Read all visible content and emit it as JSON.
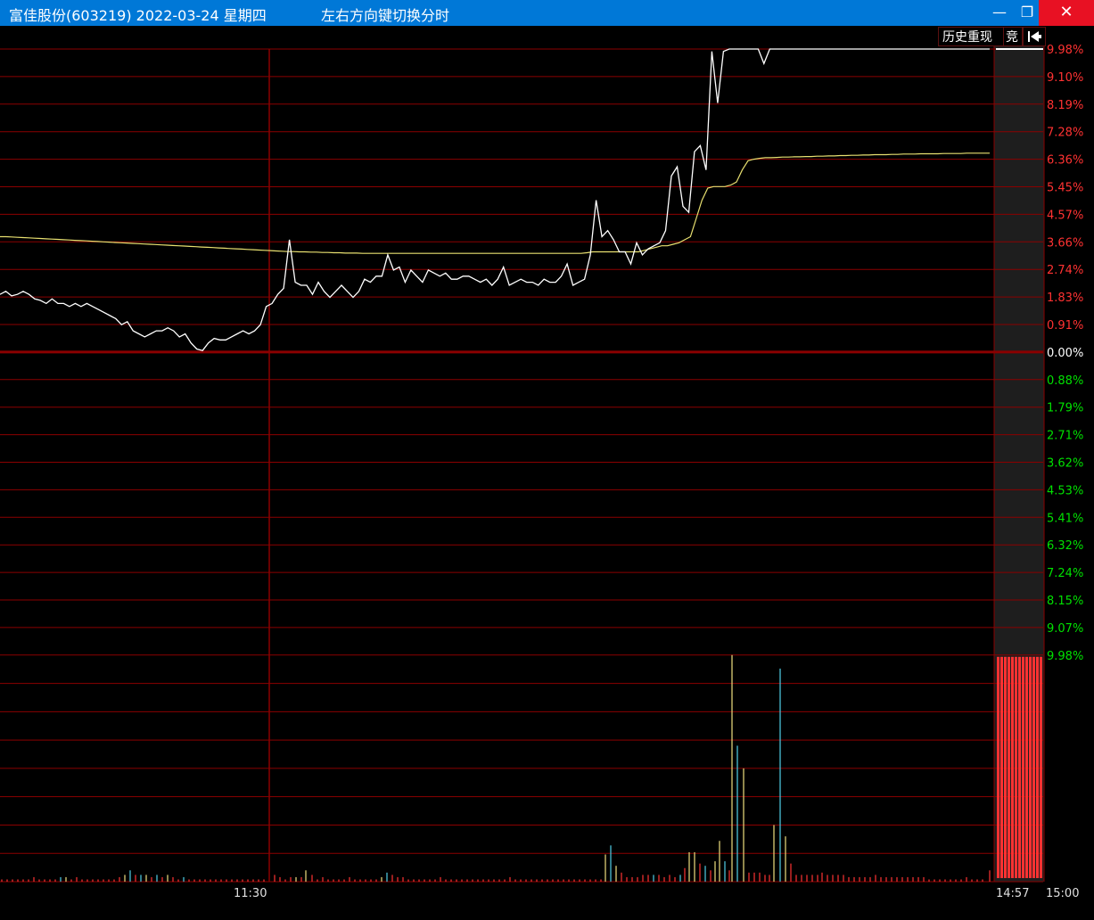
{
  "window": {
    "title": "富佳股份(603219) 2022-03-24 星期四",
    "hint": "左右方向键切换分时",
    "minimize_label": "—",
    "maximize_label": "❐",
    "close_label": "✕"
  },
  "toolbar": {
    "replay_label": "历史重现",
    "auction_label": "竞",
    "back_icon": "arrow-left-bar-icon"
  },
  "colors": {
    "up": "#ff3232",
    "down": "#00e000",
    "grid": "#8b0000",
    "price_line": "#ffffff",
    "avg_line": "#e8e070",
    "vol_cyan": "#50d0e8",
    "vol_yellow": "#f0e080"
  },
  "chart_data": {
    "type": "line",
    "price_axis_labels_up": [
      "9.98%",
      "9.10%",
      "8.19%",
      "7.28%",
      "6.36%",
      "5.45%",
      "4.57%",
      "3.66%",
      "2.74%",
      "1.83%",
      "0.91%"
    ],
    "zero_label": "0.00%",
    "price_axis_labels_down": [
      "0.88%",
      "1.79%",
      "2.71%",
      "3.62%",
      "4.53%",
      "5.41%",
      "6.32%",
      "7.24%",
      "8.15%",
      "9.07%"
    ],
    "volume_axis_label": "9.98%",
    "ylim_pct": [
      -9.98,
      9.98
    ],
    "x_ticks": [
      "11:30"
    ],
    "auction_x_ticks": [
      "14:57",
      "15:00"
    ],
    "price_pct": [
      1.9,
      2.0,
      1.85,
      1.9,
      2.0,
      1.9,
      1.75,
      1.7,
      1.6,
      1.75,
      1.6,
      1.6,
      1.5,
      1.6,
      1.5,
      1.6,
      1.5,
      1.4,
      1.3,
      1.2,
      1.1,
      0.9,
      1.0,
      0.7,
      0.6,
      0.5,
      0.6,
      0.7,
      0.7,
      0.8,
      0.7,
      0.5,
      0.6,
      0.3,
      0.1,
      0.05,
      0.3,
      0.45,
      0.4,
      0.4,
      0.5,
      0.6,
      0.7,
      0.6,
      0.7,
      0.9,
      1.5,
      1.6,
      1.9,
      2.1,
      3.7,
      2.3,
      2.2,
      2.2,
      1.9,
      2.3,
      2.0,
      1.8,
      2.0,
      2.2,
      2.0,
      1.8,
      2.0,
      2.4,
      2.3,
      2.5,
      2.5,
      3.2,
      2.7,
      2.8,
      2.3,
      2.7,
      2.5,
      2.3,
      2.7,
      2.6,
      2.5,
      2.6,
      2.4,
      2.4,
      2.5,
      2.5,
      2.4,
      2.3,
      2.4,
      2.2,
      2.4,
      2.8,
      2.2,
      2.3,
      2.4,
      2.3,
      2.3,
      2.2,
      2.4,
      2.3,
      2.3,
      2.5,
      2.9,
      2.2,
      2.3,
      2.4,
      3.2,
      5.0,
      3.8,
      4.0,
      3.7,
      3.3,
      3.3,
      2.9,
      3.6,
      3.2,
      3.4,
      3.5,
      3.6,
      4.0,
      5.8,
      6.1,
      4.8,
      4.6,
      6.6,
      6.8,
      6.0,
      9.9,
      8.2,
      9.9,
      9.98,
      9.98,
      9.98,
      9.98,
      9.98,
      9.98,
      9.5,
      9.98,
      9.98,
      9.98,
      9.98,
      9.98,
      9.98,
      9.98,
      9.98,
      9.98,
      9.98,
      9.98,
      9.98,
      9.98,
      9.98,
      9.98,
      9.98,
      9.98,
      9.98,
      9.98,
      9.98,
      9.98,
      9.98,
      9.98,
      9.98,
      9.98,
      9.98,
      9.98,
      9.98,
      9.98,
      9.98,
      9.98,
      9.98,
      9.98,
      9.98,
      9.98,
      9.98,
      9.98,
      9.98,
      9.98
    ],
    "avg_pct": [
      3.8,
      3.8,
      3.79,
      3.78,
      3.77,
      3.76,
      3.75,
      3.74,
      3.73,
      3.72,
      3.71,
      3.7,
      3.69,
      3.68,
      3.67,
      3.66,
      3.65,
      3.64,
      3.63,
      3.62,
      3.61,
      3.6,
      3.59,
      3.58,
      3.57,
      3.56,
      3.55,
      3.54,
      3.53,
      3.52,
      3.51,
      3.5,
      3.49,
      3.48,
      3.47,
      3.46,
      3.45,
      3.44,
      3.43,
      3.42,
      3.41,
      3.4,
      3.39,
      3.38,
      3.37,
      3.36,
      3.35,
      3.34,
      3.33,
      3.32,
      3.31,
      3.31,
      3.3,
      3.3,
      3.29,
      3.29,
      3.28,
      3.28,
      3.27,
      3.27,
      3.26,
      3.26,
      3.26,
      3.25,
      3.25,
      3.25,
      3.25,
      3.25,
      3.25,
      3.25,
      3.25,
      3.25,
      3.25,
      3.25,
      3.25,
      3.25,
      3.25,
      3.25,
      3.25,
      3.25,
      3.25,
      3.25,
      3.25,
      3.25,
      3.25,
      3.25,
      3.25,
      3.25,
      3.25,
      3.25,
      3.25,
      3.25,
      3.25,
      3.25,
      3.25,
      3.25,
      3.25,
      3.25,
      3.25,
      3.25,
      3.25,
      3.25,
      3.27,
      3.3,
      3.3,
      3.3,
      3.3,
      3.3,
      3.3,
      3.3,
      3.3,
      3.3,
      3.35,
      3.4,
      3.45,
      3.5,
      3.5,
      3.55,
      3.6,
      3.7,
      3.8,
      4.4,
      5.0,
      5.4,
      5.45,
      5.45,
      5.45,
      5.5,
      5.6,
      6.0,
      6.3,
      6.35,
      6.38,
      6.4,
      6.4,
      6.41,
      6.42,
      6.42,
      6.43,
      6.43,
      6.44,
      6.44,
      6.45,
      6.45,
      6.46,
      6.46,
      6.47,
      6.47,
      6.48,
      6.48,
      6.49,
      6.49,
      6.5,
      6.5,
      6.5,
      6.51,
      6.51,
      6.52,
      6.52,
      6.52,
      6.53,
      6.53,
      6.53,
      6.53,
      6.54,
      6.54,
      6.54,
      6.54,
      6.55,
      6.55,
      6.55,
      6.55,
      6.55
    ],
    "volume": [
      [
        2,
        1,
        "r"
      ],
      [
        8,
        1,
        "r"
      ],
      [
        14,
        1,
        "r"
      ],
      [
        20,
        1,
        "r"
      ],
      [
        26,
        1,
        "r"
      ],
      [
        32,
        1,
        "r"
      ],
      [
        38,
        2,
        "r"
      ],
      [
        44,
        1,
        "r"
      ],
      [
        50,
        1,
        "r"
      ],
      [
        56,
        1,
        "r"
      ],
      [
        62,
        1,
        "r"
      ],
      [
        68,
        2,
        "c"
      ],
      [
        74,
        2,
        "y"
      ],
      [
        80,
        1,
        "r"
      ],
      [
        86,
        2,
        "r"
      ],
      [
        92,
        1,
        "r"
      ],
      [
        98,
        1,
        "r"
      ],
      [
        104,
        1,
        "r"
      ],
      [
        110,
        1,
        "r"
      ],
      [
        116,
        1,
        "r"
      ],
      [
        122,
        1,
        "r"
      ],
      [
        128,
        1,
        "r"
      ],
      [
        134,
        2,
        "r"
      ],
      [
        140,
        3,
        "y"
      ],
      [
        146,
        5,
        "c"
      ],
      [
        152,
        3,
        "r"
      ],
      [
        158,
        3,
        "c"
      ],
      [
        164,
        3,
        "y"
      ],
      [
        170,
        2,
        "r"
      ],
      [
        176,
        3,
        "c"
      ],
      [
        182,
        2,
        "r"
      ],
      [
        188,
        3,
        "y"
      ],
      [
        194,
        2,
        "r"
      ],
      [
        200,
        1,
        "r"
      ],
      [
        206,
        2,
        "c"
      ],
      [
        212,
        1,
        "r"
      ],
      [
        218,
        1,
        "r"
      ],
      [
        224,
        1,
        "r"
      ],
      [
        230,
        1,
        "r"
      ],
      [
        236,
        1,
        "r"
      ],
      [
        242,
        1,
        "r"
      ],
      [
        248,
        1,
        "r"
      ],
      [
        254,
        1,
        "r"
      ],
      [
        260,
        1,
        "r"
      ],
      [
        266,
        1,
        "r"
      ],
      [
        272,
        1,
        "r"
      ],
      [
        278,
        1,
        "r"
      ],
      [
        284,
        1,
        "r"
      ],
      [
        290,
        1,
        "r"
      ],
      [
        296,
        1,
        "r"
      ],
      [
        308,
        3,
        "r"
      ],
      [
        314,
        2,
        "r"
      ],
      [
        320,
        1,
        "r"
      ],
      [
        326,
        2,
        "r"
      ],
      [
        332,
        2,
        "y"
      ],
      [
        338,
        2,
        "r"
      ],
      [
        343,
        5,
        "y"
      ],
      [
        350,
        3,
        "r"
      ],
      [
        356,
        1,
        "r"
      ],
      [
        362,
        2,
        "r"
      ],
      [
        368,
        1,
        "r"
      ],
      [
        374,
        1,
        "r"
      ],
      [
        380,
        1,
        "r"
      ],
      [
        386,
        1,
        "r"
      ],
      [
        392,
        2,
        "r"
      ],
      [
        398,
        1,
        "r"
      ],
      [
        404,
        1,
        "r"
      ],
      [
        410,
        1,
        "r"
      ],
      [
        416,
        1,
        "r"
      ],
      [
        422,
        1,
        "r"
      ],
      [
        428,
        2,
        "y"
      ],
      [
        434,
        4,
        "c"
      ],
      [
        440,
        3,
        "r"
      ],
      [
        446,
        2,
        "r"
      ],
      [
        452,
        2,
        "r"
      ],
      [
        458,
        1,
        "r"
      ],
      [
        464,
        1,
        "r"
      ],
      [
        470,
        1,
        "r"
      ],
      [
        476,
        1,
        "r"
      ],
      [
        482,
        1,
        "r"
      ],
      [
        488,
        1,
        "r"
      ],
      [
        494,
        2,
        "r"
      ],
      [
        500,
        1,
        "r"
      ],
      [
        506,
        1,
        "r"
      ],
      [
        512,
        1,
        "r"
      ],
      [
        518,
        1,
        "r"
      ],
      [
        524,
        1,
        "r"
      ],
      [
        530,
        1,
        "r"
      ],
      [
        536,
        1,
        "r"
      ],
      [
        542,
        1,
        "r"
      ],
      [
        548,
        1,
        "r"
      ],
      [
        554,
        1,
        "r"
      ],
      [
        560,
        1,
        "r"
      ],
      [
        566,
        1,
        "r"
      ],
      [
        572,
        2,
        "r"
      ],
      [
        578,
        1,
        "r"
      ],
      [
        584,
        1,
        "r"
      ],
      [
        590,
        1,
        "r"
      ],
      [
        596,
        1,
        "r"
      ],
      [
        602,
        1,
        "r"
      ],
      [
        608,
        1,
        "r"
      ],
      [
        614,
        1,
        "r"
      ],
      [
        620,
        1,
        "r"
      ],
      [
        626,
        1,
        "r"
      ],
      [
        632,
        1,
        "r"
      ],
      [
        638,
        1,
        "r"
      ],
      [
        644,
        1,
        "r"
      ],
      [
        650,
        1,
        "r"
      ],
      [
        656,
        1,
        "r"
      ],
      [
        662,
        1,
        "r"
      ],
      [
        668,
        1,
        "r"
      ],
      [
        674,
        1,
        "r"
      ],
      [
        679,
        12,
        "y"
      ],
      [
        685,
        16,
        "c"
      ],
      [
        691,
        7,
        "y"
      ],
      [
        697,
        4,
        "r"
      ],
      [
        703,
        2,
        "r"
      ],
      [
        709,
        2,
        "r"
      ],
      [
        715,
        2,
        "r"
      ],
      [
        721,
        3,
        "r"
      ],
      [
        727,
        3,
        "r"
      ],
      [
        733,
        3,
        "c"
      ],
      [
        739,
        3,
        "r"
      ],
      [
        745,
        2,
        "r"
      ],
      [
        751,
        3,
        "r"
      ],
      [
        757,
        2,
        "r"
      ],
      [
        763,
        3,
        "c"
      ],
      [
        768,
        6,
        "r"
      ],
      [
        773,
        13,
        "y"
      ],
      [
        779,
        13,
        "y"
      ],
      [
        785,
        8,
        "r"
      ],
      [
        791,
        7,
        "c"
      ],
      [
        797,
        5,
        "r"
      ],
      [
        802,
        9,
        "y"
      ],
      [
        807,
        18,
        "y"
      ],
      [
        813,
        9,
        "c"
      ],
      [
        818,
        5,
        "r"
      ],
      [
        821,
        100,
        "y"
      ],
      [
        827,
        60,
        "c"
      ],
      [
        834,
        50,
        "y"
      ],
      [
        840,
        4,
        "r"
      ],
      [
        846,
        4,
        "r"
      ],
      [
        852,
        4,
        "r"
      ],
      [
        858,
        3,
        "r"
      ],
      [
        863,
        3,
        "r"
      ],
      [
        868,
        25,
        "y"
      ],
      [
        875,
        94,
        "c"
      ],
      [
        881,
        20,
        "y"
      ],
      [
        887,
        8,
        "r"
      ],
      [
        893,
        3,
        "r"
      ],
      [
        899,
        3,
        "r"
      ],
      [
        905,
        3,
        "r"
      ],
      [
        911,
        3,
        "r"
      ],
      [
        917,
        3,
        "r"
      ],
      [
        922,
        4,
        "r"
      ],
      [
        928,
        3,
        "r"
      ],
      [
        934,
        3,
        "r"
      ],
      [
        940,
        3,
        "r"
      ],
      [
        946,
        3,
        "r"
      ],
      [
        952,
        2,
        "r"
      ],
      [
        958,
        2,
        "r"
      ],
      [
        964,
        2,
        "r"
      ],
      [
        970,
        2,
        "r"
      ],
      [
        976,
        2,
        "r"
      ],
      [
        982,
        3,
        "r"
      ],
      [
        988,
        2,
        "r"
      ],
      [
        994,
        2,
        "r"
      ],
      [
        1000,
        2,
        "r"
      ],
      [
        1006,
        2,
        "r"
      ],
      [
        1012,
        2,
        "r"
      ],
      [
        1018,
        2,
        "r"
      ],
      [
        1024,
        2,
        "r"
      ],
      [
        1030,
        2,
        "r"
      ],
      [
        1036,
        2,
        "r"
      ],
      [
        1042,
        1,
        "r"
      ],
      [
        1048,
        1,
        "r"
      ],
      [
        1054,
        1,
        "r"
      ],
      [
        1060,
        1,
        "r"
      ],
      [
        1066,
        1,
        "r"
      ],
      [
        1072,
        1,
        "r"
      ],
      [
        1078,
        1,
        "r"
      ],
      [
        1084,
        2,
        "r"
      ],
      [
        1090,
        1,
        "r"
      ],
      [
        1096,
        1,
        "r"
      ],
      [
        1102,
        1,
        "r"
      ],
      [
        1110,
        5,
        "r"
      ]
    ]
  }
}
